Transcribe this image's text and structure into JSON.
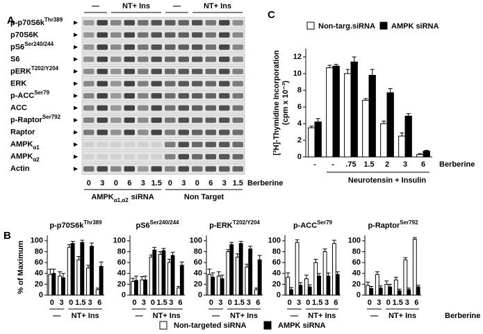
{
  "panels": {
    "a": "A",
    "b": "B",
    "c": "C"
  },
  "blot": {
    "treatment_groups": [
      "—",
      "NT+ Ins",
      "—",
      "NT+ Ins"
    ],
    "proteins": [
      {
        "name": "p-p70S6k",
        "mod": "Thr389"
      },
      {
        "name": "p70S6K"
      },
      {
        "name": "pS6",
        "mod": "Ser240/244"
      },
      {
        "name": "S6"
      },
      {
        "name": "pERK",
        "mod": "T202/Y204"
      },
      {
        "name": "ERK"
      },
      {
        "name": "p-ACC",
        "mod": "Ser79"
      },
      {
        "name": "ACC"
      },
      {
        "name": "p-Raptor",
        "mod": "Ser792"
      },
      {
        "name": "Raptor"
      },
      {
        "name": "AMPK",
        "sub": "α1"
      },
      {
        "name": "AMPK",
        "sub": "α2"
      },
      {
        "name": "Actin"
      }
    ],
    "lanes": [
      "0",
      "3",
      "0",
      "6",
      "3",
      "1.5",
      "0",
      "3",
      "0",
      "6",
      "3",
      "1.5"
    ],
    "lane_axis_label": "Berberine",
    "sirna_groups": [
      {
        "name": "AMPK",
        "sub": "α1,α2",
        "suffix": "siRNA"
      },
      {
        "name": "Non Target"
      }
    ]
  },
  "panel_b": {
    "ylabel": "% of Maximum",
    "xlabel": "Berberine",
    "legend": [
      {
        "name": "Non-targeted siRNA",
        "color": "#ffffff"
      },
      {
        "name": "AMPK siRNA",
        "color": "#000000"
      }
    ]
  },
  "chart_data": [
    {
      "type": "bar",
      "ylabel": "[³H]-Thymidine Incorporation",
      "ylabel_unit": "(cpm x 10⁻³)",
      "xlabel": "Berberine",
      "group_label": "Neurotensin + Insulin",
      "legend_position": "top",
      "categories": [
        "-",
        "-",
        ".75",
        "1.5",
        "2",
        "3",
        "6"
      ],
      "series": [
        {
          "name": "Non-targ.siRNA",
          "color": "#ffffff",
          "values": [
            3.5,
            10.7,
            10.0,
            6.8,
            4.0,
            2.5,
            0.3
          ],
          "errors": [
            0.2,
            0.3,
            0.5,
            0.2,
            0.3,
            0.4,
            0.1
          ]
        },
        {
          "name": "AMPK siRNA",
          "color": "#000000",
          "values": [
            4.2,
            10.9,
            11.4,
            9.8,
            7.7,
            4.9,
            0.7
          ],
          "errors": [
            0.4,
            0.2,
            0.6,
            0.7,
            0.5,
            0.3,
            0.1
          ]
        }
      ],
      "ylim": [
        0,
        13
      ],
      "yticks": [
        0,
        2,
        4,
        6,
        8,
        10,
        12
      ]
    },
    {
      "type": "bar",
      "title": "p-p70S6k",
      "title_sup": "Thr389",
      "categories": [
        "0",
        "3",
        "0",
        "1.5",
        "3",
        "6"
      ],
      "groups": [
        "—",
        "NT+ Ins"
      ],
      "series": [
        {
          "color": "#ffffff",
          "values": [
            38,
            35,
            88,
            65,
            50,
            10
          ],
          "errors": [
            10,
            8,
            5,
            6,
            5,
            3
          ]
        },
        {
          "color": "#000000",
          "values": [
            40,
            32,
            95,
            97,
            90,
            53
          ],
          "errors": [
            8,
            8,
            4,
            4,
            6,
            8
          ]
        }
      ],
      "ylim": [
        0,
        110
      ],
      "yticks": [
        0,
        20,
        40,
        60,
        80,
        100
      ]
    },
    {
      "type": "bar",
      "title": "pS6",
      "title_sup": "Ser240/244",
      "categories": [
        "0",
        "3",
        "0",
        "1.5",
        "3",
        "6"
      ],
      "groups": [
        "—",
        "NT+ Ins"
      ],
      "series": [
        {
          "color": "#ffffff",
          "values": [
            25,
            28,
            70,
            75,
            60,
            13
          ],
          "errors": [
            6,
            6,
            4,
            5,
            6,
            3
          ]
        },
        {
          "color": "#000000",
          "values": [
            27,
            28,
            83,
            82,
            73,
            55
          ],
          "errors": [
            8,
            7,
            5,
            4,
            6,
            6
          ]
        }
      ],
      "ylim": [
        0,
        110
      ],
      "yticks": [
        0,
        20,
        40,
        60,
        80,
        100
      ]
    },
    {
      "type": "bar",
      "title": "p-ERK",
      "title_sup": "T202/Y204",
      "categories": [
        "0",
        "3",
        "0",
        "1.5",
        "3",
        "6"
      ],
      "groups": [
        "—",
        "NT+ Ins"
      ],
      "series": [
        {
          "color": "#ffffff",
          "values": [
            38,
            35,
            80,
            70,
            52,
            10
          ],
          "errors": [
            10,
            8,
            4,
            6,
            5,
            3
          ]
        },
        {
          "color": "#000000",
          "values": [
            33,
            30,
            93,
            95,
            85,
            65
          ],
          "errors": [
            8,
            7,
            4,
            4,
            5,
            8
          ]
        }
      ],
      "ylim": [
        0,
        110
      ],
      "yticks": [
        0,
        20,
        40,
        60,
        80,
        100
      ]
    },
    {
      "type": "bar",
      "title": "p-ACC",
      "title_sup": "Ser79",
      "categories": [
        "0",
        "3",
        "0",
        "1.5",
        "3",
        "6"
      ],
      "groups": [
        "—",
        "NT+ Ins"
      ],
      "series": [
        {
          "color": "#ffffff",
          "values": [
            33,
            97,
            30,
            60,
            80,
            95
          ],
          "errors": [
            8,
            5,
            7,
            6,
            5,
            6
          ]
        },
        {
          "color": "#000000",
          "values": [
            10,
            18,
            15,
            35,
            35,
            38
          ],
          "errors": [
            4,
            5,
            4,
            5,
            6,
            5
          ]
        }
      ],
      "ylim": [
        0,
        110
      ],
      "yticks": [
        0,
        20,
        40,
        60,
        80,
        100
      ]
    },
    {
      "type": "bar",
      "title": "p-Raptor",
      "title_sup": "Ser792",
      "categories": [
        "0",
        "3",
        "0",
        "1.5",
        "3",
        "6"
      ],
      "groups": [
        "—",
        "NT+ Ins"
      ],
      "series": [
        {
          "color": "#ffffff",
          "values": [
            18,
            38,
            20,
            28,
            65,
            103
          ],
          "errors": [
            6,
            5,
            6,
            5,
            4,
            3
          ]
        },
        {
          "color": "#000000",
          "values": [
            12,
            13,
            15,
            8,
            10,
            15
          ],
          "errors": [
            4,
            4,
            5,
            3,
            3,
            3
          ]
        }
      ],
      "ylim": [
        0,
        110
      ],
      "yticks": [
        0,
        20,
        40,
        60,
        80,
        100
      ]
    }
  ]
}
